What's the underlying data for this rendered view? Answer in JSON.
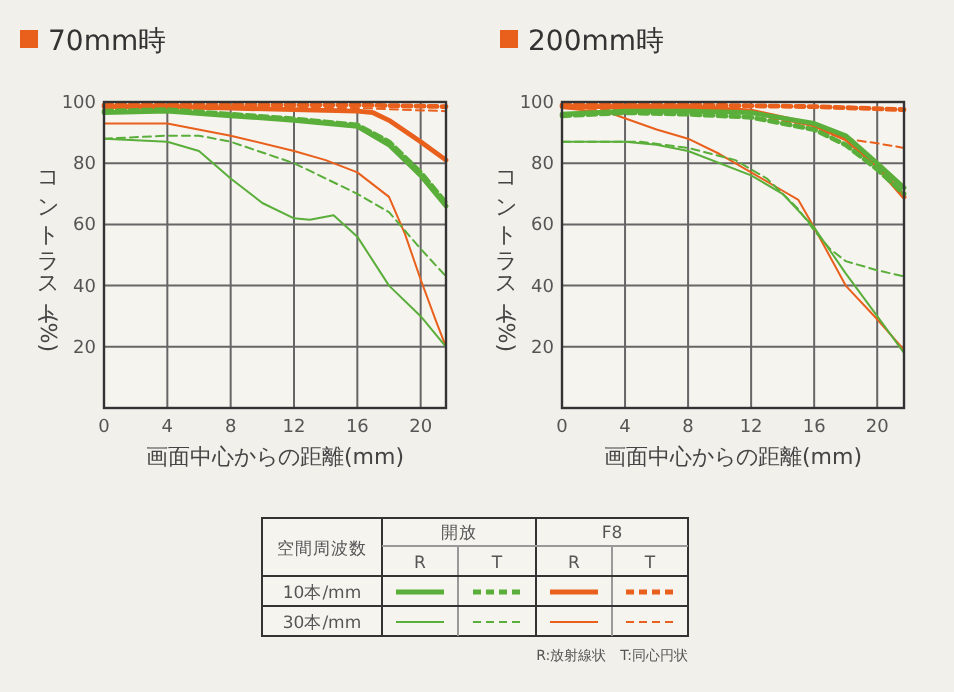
{
  "chart_data": [
    {
      "type": "line",
      "title": "70mm時",
      "xlabel": "画面中心からの距離(mm)",
      "ylabel": "コントラスト(%)",
      "xlim": [
        0,
        21.6
      ],
      "ylim": [
        0,
        100
      ],
      "xticks": [
        0,
        4,
        8,
        12,
        16,
        20
      ],
      "yticks": [
        20,
        40,
        60,
        80,
        100
      ],
      "grid": true,
      "series": [
        {
          "color": "#5aae3a",
          "line_style": "solid",
          "x": [
            0,
            4,
            8,
            12,
            16,
            18,
            20,
            21.6
          ],
          "values": [
            96.5,
            97,
            95.5,
            94,
            92,
            86,
            76,
            66
          ]
        },
        {
          "color": "#5aae3a",
          "line_style": "dashed",
          "x": [
            0,
            4,
            8,
            12,
            16,
            18,
            20,
            21.6
          ],
          "values": [
            97,
            97.5,
            96,
            94.5,
            92.5,
            87,
            77,
            67
          ]
        },
        {
          "color": "#e8601c",
          "line_style": "solid",
          "x": [
            0,
            4,
            8,
            12,
            16,
            17,
            18,
            20,
            21.6
          ],
          "values": [
            98.5,
            98.5,
            98,
            97.5,
            97,
            96.5,
            94,
            87,
            81
          ]
        },
        {
          "color": "#e8601c",
          "line_style": "dashed",
          "x": [
            0,
            8,
            16,
            21.6
          ],
          "values": [
            99,
            99,
            99,
            98.5
          ]
        },
        {
          "color": "#5aae3a",
          "line_style": "solid",
          "x": [
            0,
            4,
            6,
            8,
            10,
            12,
            13,
            14.5,
            16,
            18,
            20,
            21.6
          ],
          "values": [
            88,
            87,
            84,
            75,
            67,
            62,
            61.5,
            63,
            56,
            40,
            30,
            20
          ]
        },
        {
          "color": "#5aae3a",
          "line_style": "dashed",
          "x": [
            0,
            4,
            6,
            8,
            12,
            16,
            18,
            20,
            21.6
          ],
          "values": [
            88,
            89,
            89,
            87,
            80,
            70,
            64,
            52,
            43
          ]
        },
        {
          "color": "#e8601c",
          "line_style": "solid",
          "x": [
            0,
            4,
            8,
            12,
            14,
            16,
            18,
            19,
            20,
            21,
            21.6
          ],
          "values": [
            93,
            93,
            89,
            84,
            81,
            77,
            69,
            57,
            42,
            28,
            20
          ]
        },
        {
          "color": "#e8601c",
          "line_style": "dashed",
          "x": [
            0,
            8,
            16,
            21.6
          ],
          "values": [
            97,
            98,
            98,
            97
          ]
        }
      ]
    },
    {
      "type": "line",
      "title": "200mm時",
      "xlabel": "画面中心からの距離(mm)",
      "ylabel": "コントラスト(%)",
      "xlim": [
        0,
        21.7
      ],
      "ylim": [
        0,
        100
      ],
      "xticks": [
        0,
        4,
        8,
        12,
        16,
        20
      ],
      "yticks": [
        20,
        40,
        60,
        80,
        100
      ],
      "grid": true,
      "series": [
        {
          "color": "#5aae3a",
          "line_style": "solid",
          "x": [
            0,
            4,
            8,
            12,
            16,
            18,
            20,
            21.7
          ],
          "values": [
            96,
            97,
            97,
            96.5,
            93,
            89,
            80,
            72
          ]
        },
        {
          "color": "#5aae3a",
          "line_style": "dashed",
          "x": [
            0,
            4,
            8,
            12,
            16,
            18,
            20,
            21.7
          ],
          "values": [
            95.5,
            96.5,
            96,
            95,
            91,
            86,
            78,
            70
          ]
        },
        {
          "color": "#e8601c",
          "line_style": "solid",
          "x": [
            0,
            8,
            12,
            16,
            18,
            20,
            21.7
          ],
          "values": [
            98.5,
            98.5,
            97,
            92.5,
            88,
            79,
            69
          ]
        },
        {
          "color": "#e8601c",
          "line_style": "dashed",
          "x": [
            0,
            8,
            16,
            21.7
          ],
          "values": [
            99,
            99,
            98.5,
            97.5
          ]
        },
        {
          "color": "#5aae3a",
          "line_style": "solid",
          "x": [
            0,
            4,
            6,
            8,
            12,
            14,
            16,
            18,
            20,
            21.7
          ],
          "values": [
            87,
            87,
            86,
            84,
            76,
            70,
            59,
            44,
            30,
            18
          ]
        },
        {
          "color": "#5aae3a",
          "line_style": "dashed",
          "x": [
            0,
            5,
            8,
            11,
            13,
            15,
            16,
            17,
            18,
            20,
            21.7
          ],
          "values": [
            87,
            87,
            85,
            81,
            75,
            65,
            58,
            52,
            48,
            45,
            43
          ]
        },
        {
          "color": "#e8601c",
          "line_style": "solid",
          "x": [
            0,
            3,
            6,
            8,
            10,
            12,
            14,
            15,
            16,
            18,
            20,
            21.7
          ],
          "values": [
            98,
            96.5,
            91,
            88,
            83,
            77,
            71,
            68,
            59,
            40,
            29,
            19
          ]
        },
        {
          "color": "#e8601c",
          "line_style": "dashed",
          "x": [
            0,
            8,
            14,
            16,
            18,
            20,
            21.7
          ],
          "values": [
            98,
            97,
            94,
            91,
            88,
            86.5,
            85
          ]
        }
      ]
    },
    {
      "type": "other",
      "annotations": [
        "空間周波数",
        "開放",
        "F8",
        "R",
        "T",
        "R",
        "T",
        "10本/mm",
        "30本/mm",
        "R:放射線状　T:同心円状"
      ]
    }
  ]
}
